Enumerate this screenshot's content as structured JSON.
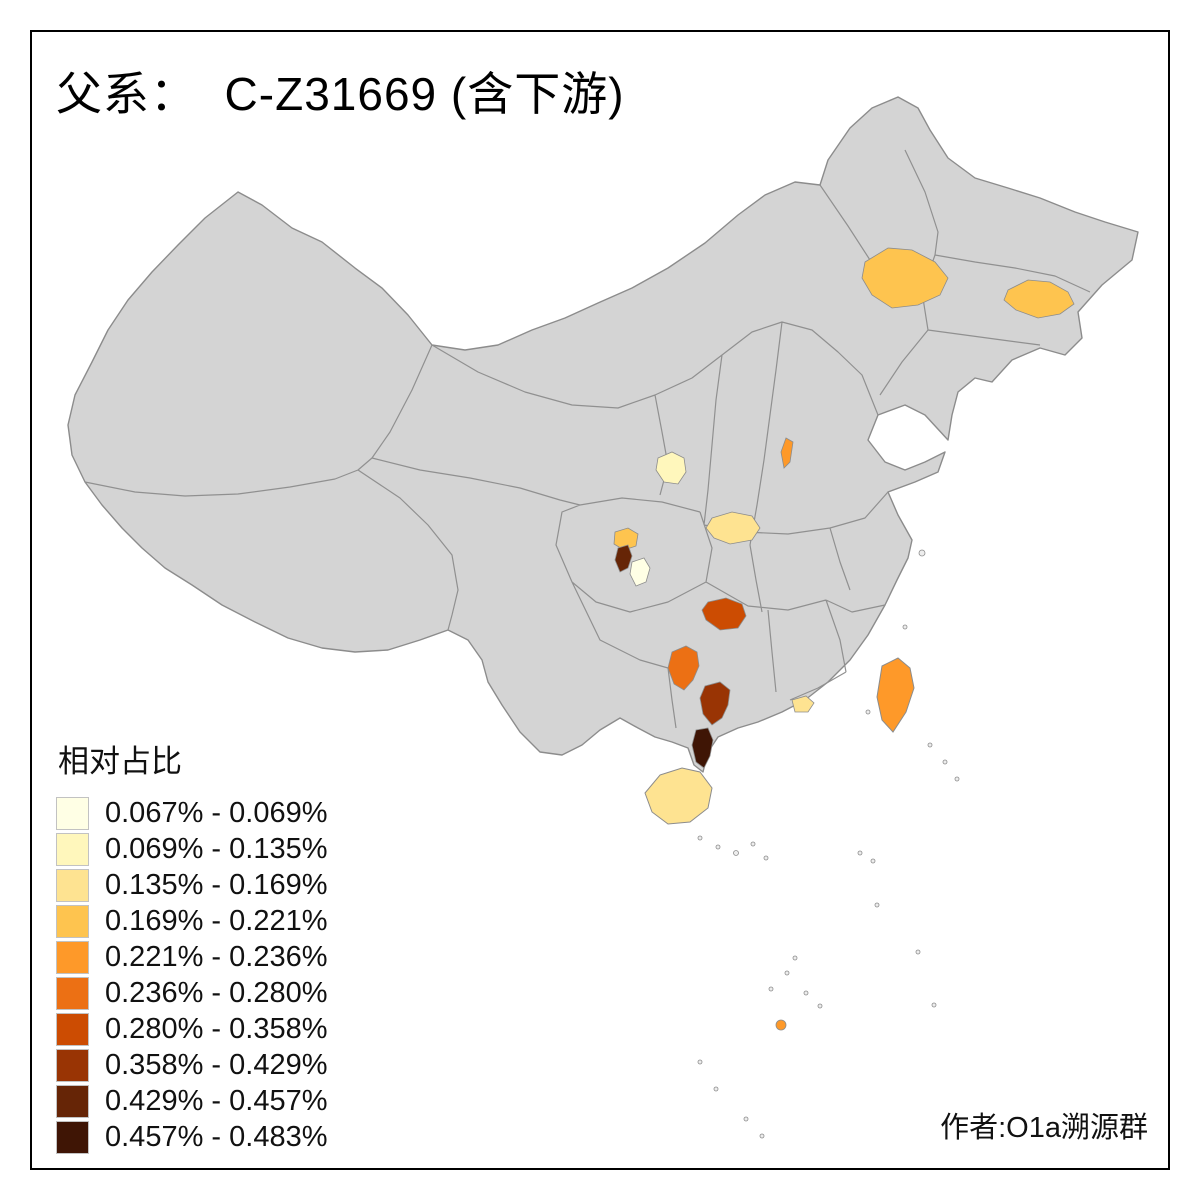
{
  "title": "父系：  C-Z31669 (含下游)",
  "attribution": "作者:O1a溯源群",
  "legend": {
    "title": "相对占比",
    "items": [
      {
        "range": "0.067% - 0.069%",
        "color": "#FFFFE5"
      },
      {
        "range": "0.069% - 0.135%",
        "color": "#FFF7BC"
      },
      {
        "range": "0.135% - 0.169%",
        "color": "#FEE391"
      },
      {
        "range": "0.169% - 0.221%",
        "color": "#FEC44F"
      },
      {
        "range": "0.221% - 0.236%",
        "color": "#FE9929"
      },
      {
        "range": "0.236% - 0.280%",
        "color": "#EC7014"
      },
      {
        "range": "0.280% - 0.358%",
        "color": "#CC4C02"
      },
      {
        "range": "0.358% - 0.429%",
        "color": "#993404"
      },
      {
        "range": "0.429% - 0.457%",
        "color": "#662506"
      },
      {
        "range": "0.457% - 0.483%",
        "color": "#3F1505"
      }
    ]
  },
  "map": {
    "land_fill": "#D4D4D4",
    "border_stroke": "#8C8C8C",
    "regions": [
      {
        "id": "inner-mongolia-northeast",
        "color": "#FEC44F",
        "range": "0.169% - 0.221%"
      },
      {
        "id": "jilin-east",
        "color": "#FEC44F",
        "range": "0.169% - 0.221%"
      },
      {
        "id": "shanxi-hebei-sliver",
        "color": "#FE9929",
        "range": "0.221% - 0.236%"
      },
      {
        "id": "gansu-south",
        "color": "#FFF7BC",
        "range": "0.069% - 0.135%"
      },
      {
        "id": "shaanxi-south",
        "color": "#FEE391",
        "range": "0.135% - 0.169%"
      },
      {
        "id": "sichuan-central",
        "color": "#FEC44F",
        "range": "0.169% - 0.221%"
      },
      {
        "id": "sichuan-west-dark",
        "color": "#662506",
        "range": "0.429% - 0.457%"
      },
      {
        "id": "sichuan-south-pale",
        "color": "#FFFFE5",
        "range": "0.067% - 0.069%"
      },
      {
        "id": "hunan-west",
        "color": "#CC4C02",
        "range": "0.280% - 0.358%"
      },
      {
        "id": "guizhou-south",
        "color": "#EC7014",
        "range": "0.236% - 0.280%"
      },
      {
        "id": "guangxi-central",
        "color": "#993404",
        "range": "0.358% - 0.429%"
      },
      {
        "id": "leizhou-peninsula",
        "color": "#3F1505",
        "range": "0.457% - 0.483%"
      },
      {
        "id": "hainan",
        "color": "#FEE391",
        "range": "0.135% - 0.169%"
      },
      {
        "id": "guangdong-coast",
        "color": "#FEE391",
        "range": "0.135% - 0.169%"
      },
      {
        "id": "taiwan",
        "color": "#FE9929",
        "range": "0.221% - 0.236%"
      },
      {
        "id": "south-china-sea-island",
        "color": "#FE9929",
        "range": "0.221% - 0.236%"
      }
    ]
  }
}
